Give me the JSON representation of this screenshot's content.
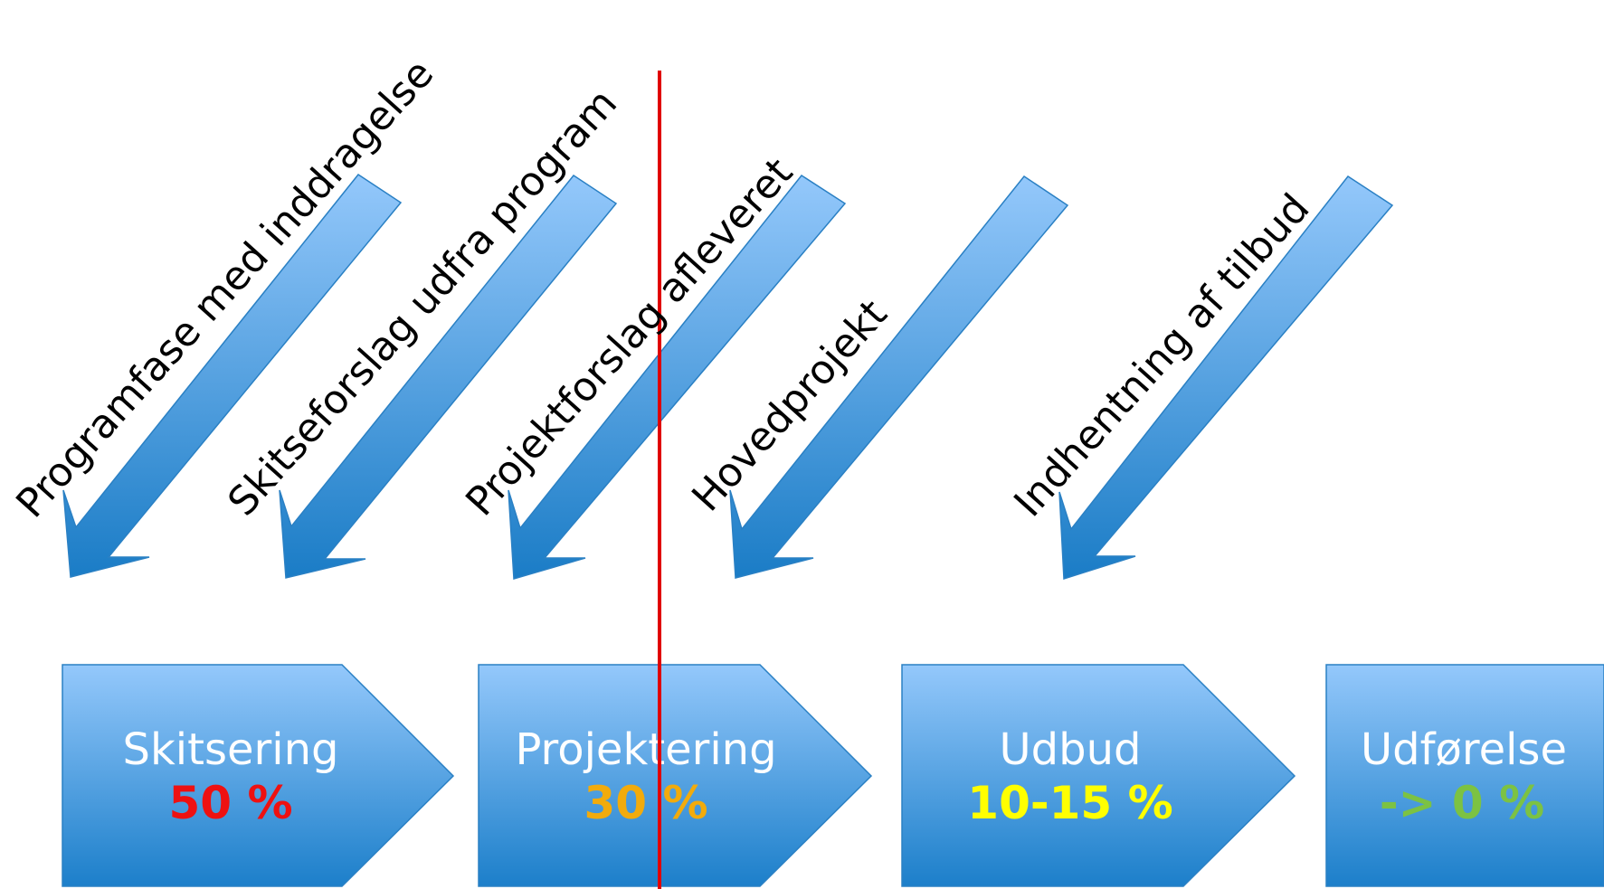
{
  "diagonal_steps": [
    {
      "label": "Programfase med inddragelse"
    },
    {
      "label": "Skitseforslag udfra program"
    },
    {
      "label": "Projektforslag afleveret"
    },
    {
      "label": "Hovedprojekt"
    },
    {
      "label": "Indhentning af tilbud"
    }
  ],
  "phases": [
    {
      "name": "Skitsering",
      "percent": "50 %",
      "percent_color": "#ee1111"
    },
    {
      "name": "Projektering",
      "percent": "30 %",
      "percent_color": "#f2ab0c"
    },
    {
      "name": "Udbud",
      "percent": "10-15 %",
      "percent_color": "#ffff00"
    },
    {
      "name": "Udførelse",
      "percent": "-> 0 %",
      "percent_color": "#7cc243"
    }
  ],
  "colors": {
    "arrow_light": "#94c8fb",
    "arrow_dark": "#1a7cc6",
    "arrow_stroke": "#2a80c4",
    "divider": "#e00000"
  }
}
